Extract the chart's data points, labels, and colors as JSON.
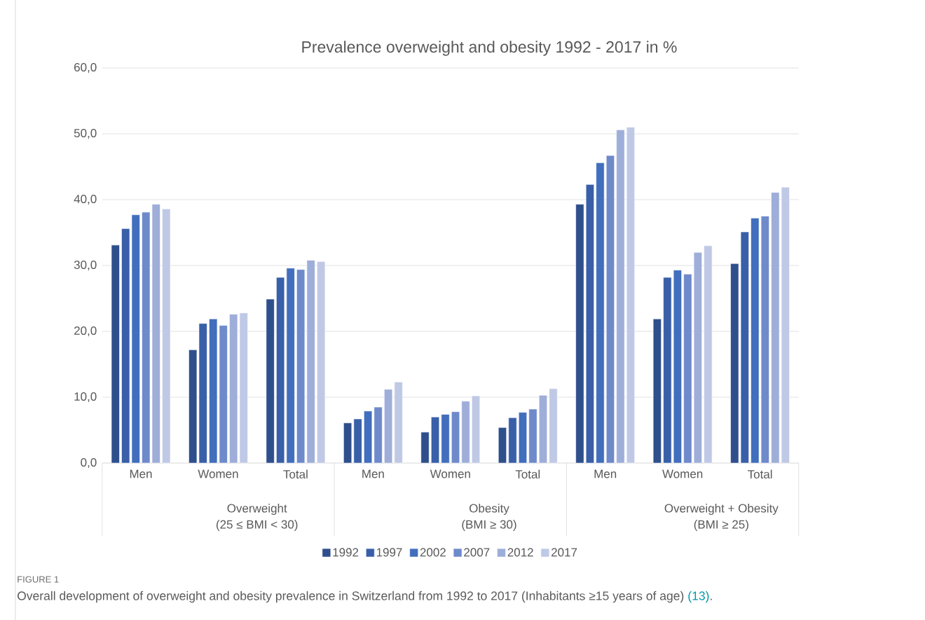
{
  "chart_data": {
    "type": "bar",
    "title": "Prevalence overweight and obesity 1992 - 2017 in %",
    "categories": [
      "Men",
      "Women",
      "Total",
      "Men",
      "Women",
      "Total",
      "Men",
      "Women",
      "Total"
    ],
    "series": [
      {
        "name": "1992",
        "color": "#2f4f8c",
        "values": [
          33.1,
          17.2,
          24.9,
          6.1,
          4.7,
          5.4,
          39.3,
          21.9,
          30.3
        ]
      },
      {
        "name": "1997",
        "color": "#385fa8",
        "values": [
          35.6,
          21.2,
          28.2,
          6.7,
          7.0,
          6.9,
          42.3,
          28.2,
          35.1
        ]
      },
      {
        "name": "2002",
        "color": "#416ebd",
        "values": [
          37.7,
          21.9,
          29.6,
          7.9,
          7.4,
          7.7,
          45.6,
          29.3,
          37.2
        ]
      },
      {
        "name": "2007",
        "color": "#6f8acb",
        "values": [
          38.1,
          20.9,
          29.4,
          8.5,
          7.8,
          8.2,
          46.7,
          28.7,
          37.5
        ]
      },
      {
        "name": "2012",
        "color": "#9eaed9",
        "values": [
          39.3,
          22.6,
          30.8,
          11.2,
          9.4,
          10.3,
          50.6,
          32.0,
          41.1
        ]
      },
      {
        "name": "2017",
        "color": "#bfc9e6",
        "values": [
          38.6,
          22.8,
          30.6,
          12.3,
          10.2,
          11.3,
          51.0,
          33.0,
          41.9
        ]
      }
    ],
    "ylim": [
      0,
      60
    ],
    "yticks": [
      {
        "value": 0,
        "label": "0,0"
      },
      {
        "value": 10,
        "label": "10,0"
      },
      {
        "value": 20,
        "label": "20,0"
      },
      {
        "value": 30,
        "label": "30,0"
      },
      {
        "value": 40,
        "label": "40,0"
      },
      {
        "value": 50,
        "label": "50,0"
      },
      {
        "value": 60,
        "label": "60,0"
      }
    ],
    "grid": "y",
    "legend": "bottom",
    "annotations": [
      "Overweight",
      "(25 ≤ BMI < 30)",
      "Obesity",
      "(BMI ≥ 30)",
      "Overweight + Obesity",
      "(BMI ≥ 25)",
      "FIGURE 1",
      "Overall development of overweight and obesity prevalence in Switzerland from 1992 to 2017 (Inhabitants ≥15 years of age)",
      "(13)",
      "."
    ]
  }
}
